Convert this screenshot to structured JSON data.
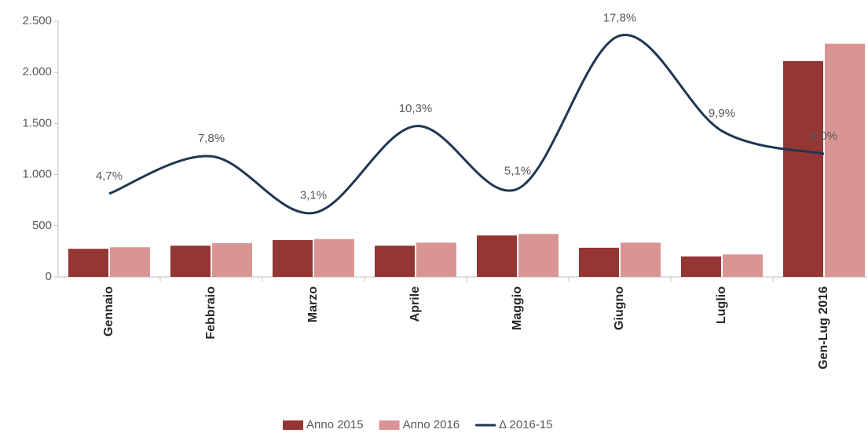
{
  "chart_data": {
    "type": "bar",
    "categories": [
      "Gennaio",
      "Febbraio",
      "Marzo",
      "Aprile",
      "Maggio",
      "Giugno",
      "Luglio",
      "Gen-Lug 2016"
    ],
    "series": [
      {
        "name": "Anno 2015",
        "color": "#943634",
        "values": [
          275,
          305,
          360,
          305,
          405,
          285,
          200,
          2110
        ]
      },
      {
        "name": "Anno 2016",
        "color": "#d99594",
        "values": [
          290,
          330,
          370,
          335,
          420,
          335,
          220,
          2280
        ]
      },
      {
        "name": "Δ 2016-15",
        "color": "#1f3552",
        "type": "line",
        "axis": "y2",
        "smooth": true,
        "values": [
          4.7,
          7.8,
          3.1,
          10.3,
          5.1,
          17.8,
          9.9,
          8.0
        ],
        "value_labels": [
          "4,7%",
          "7,8%",
          "3,1%",
          "10,3%",
          "5,1%",
          "17,8%",
          "9,9%",
          "8,0%"
        ]
      }
    ],
    "ylim": [
      0,
      2500
    ],
    "yticks": [
      0,
      500,
      {
        "value": 1000,
        "label": "1.000"
      },
      {
        "value": 1500,
        "label": "1.500"
      },
      {
        "value": 2000,
        "label": "2.000"
      },
      {
        "value": 2500,
        "label": "2.500"
      }
    ],
    "y2lim": [
      -2.2,
      19
    ],
    "legend": "bottom"
  }
}
